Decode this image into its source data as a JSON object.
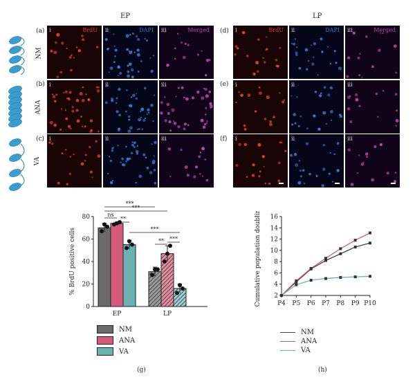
{
  "headers": {
    "ep": "EP",
    "lp": "LP"
  },
  "panel_labels": [
    "(a)",
    "(b)",
    "(c)",
    "(d)",
    "(e)",
    "(f)",
    "(g)",
    "(h)"
  ],
  "rows": [
    "NM",
    "ANA",
    "VA"
  ],
  "subpanel_numerals": [
    "i",
    "ii",
    "iii"
  ],
  "channels": {
    "brdu": "BrdU",
    "dapi": "DAPI",
    "merged": "Merged"
  },
  "colors": {
    "nm": "#8a8a8a",
    "ana": "#d65a7b",
    "va": "#6ab3b2",
    "brdu": "#d8432c",
    "dapi": "#3a78c8",
    "merged": "#b04aa8",
    "helix": "#3a9ccf"
  },
  "chart_data": [
    {
      "type": "bar",
      "ylabel": "% BrdU positive cells",
      "categories": [
        "EP",
        "LP"
      ],
      "ylim": [
        0,
        80
      ],
      "yticks": [
        0,
        20,
        40,
        60,
        80
      ],
      "series": [
        {
          "name": "NM",
          "values": [
            70,
            31
          ],
          "errors": [
            4,
            4
          ],
          "points": [
            [
              67,
              73,
              71
            ],
            [
              28,
              33,
              33
            ]
          ]
        },
        {
          "name": "ANA",
          "values": [
            74,
            47
          ],
          "errors": [
            1,
            7
          ],
          "points": [
            [
              73,
              74,
              75
            ],
            [
              40,
              47,
              54
            ]
          ]
        },
        {
          "name": "VA",
          "values": [
            55,
            16
          ],
          "errors": [
            4,
            4
          ],
          "points": [
            [
              52,
              58,
              55
            ],
            [
              12,
              19,
              16
            ]
          ]
        }
      ],
      "significance": [
        "***",
        "ns",
        "***",
        "**",
        "***",
        "**",
        "***"
      ],
      "legend": [
        "NM",
        "ANA",
        "VA"
      ]
    },
    {
      "type": "line",
      "ylabel": "Cumulative population doubling",
      "x": [
        "P4",
        "P5",
        "P6",
        "P7",
        "P8",
        "P9",
        "P10"
      ],
      "ylim": [
        2,
        16
      ],
      "yticks": [
        2,
        4,
        6,
        8,
        10,
        12,
        14,
        16
      ],
      "series": [
        {
          "name": "NM",
          "values": [
            2.0,
            4.4,
            6.7,
            8.2,
            9.4,
            10.6,
            11.3
          ]
        },
        {
          "name": "ANA",
          "values": [
            2.0,
            4.6,
            6.8,
            8.6,
            10.3,
            11.8,
            13.1
          ]
        },
        {
          "name": "VA",
          "values": [
            2.0,
            3.9,
            4.7,
            5.0,
            5.2,
            5.3,
            5.4
          ]
        }
      ],
      "legend": [
        "NM",
        "ANA",
        "VA"
      ]
    }
  ]
}
